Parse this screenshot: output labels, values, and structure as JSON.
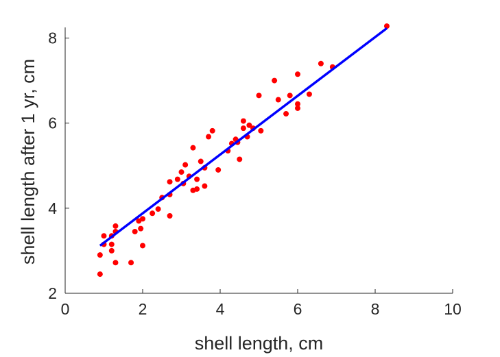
{
  "chart_data": {
    "type": "scatter",
    "title": "",
    "xlabel": "shell length, cm",
    "ylabel": "shell length after 1 yr, cm",
    "xlim": [
      0,
      10
    ],
    "ylim": [
      2,
      8.25
    ],
    "xticks": [
      "0",
      "2",
      "4",
      "6",
      "8",
      "10"
    ],
    "yticks": [
      "2",
      "4",
      "6",
      "8"
    ],
    "grid": false,
    "legend": "none",
    "colors": {
      "points": "#ff0000",
      "fit_line": "#0000ff",
      "axes": "#262626"
    },
    "points": [
      [
        0.9,
        2.45
      ],
      [
        0.9,
        2.9
      ],
      [
        1.0,
        3.15
      ],
      [
        1.0,
        3.35
      ],
      [
        1.2,
        3.35
      ],
      [
        1.2,
        3.15
      ],
      [
        1.2,
        3.0
      ],
      [
        1.3,
        3.45
      ],
      [
        1.3,
        3.58
      ],
      [
        1.3,
        2.72
      ],
      [
        1.7,
        2.72
      ],
      [
        1.8,
        3.45
      ],
      [
        1.9,
        3.7
      ],
      [
        1.95,
        3.52
      ],
      [
        2.0,
        3.75
      ],
      [
        2.0,
        3.12
      ],
      [
        2.25,
        3.88
      ],
      [
        2.4,
        3.98
      ],
      [
        2.5,
        4.25
      ],
      [
        2.7,
        4.32
      ],
      [
        2.7,
        4.62
      ],
      [
        2.7,
        3.82
      ],
      [
        2.9,
        4.68
      ],
      [
        3.0,
        4.85
      ],
      [
        3.05,
        4.58
      ],
      [
        3.1,
        5.02
      ],
      [
        3.2,
        4.75
      ],
      [
        3.3,
        4.42
      ],
      [
        3.3,
        5.42
      ],
      [
        3.4,
        4.45
      ],
      [
        3.4,
        4.68
      ],
      [
        3.5,
        5.1
      ],
      [
        3.6,
        4.52
      ],
      [
        3.6,
        4.95
      ],
      [
        3.7,
        5.68
      ],
      [
        3.8,
        5.82
      ],
      [
        3.95,
        4.9
      ],
      [
        4.2,
        5.35
      ],
      [
        4.3,
        5.52
      ],
      [
        4.4,
        5.62
      ],
      [
        4.45,
        5.55
      ],
      [
        4.5,
        5.15
      ],
      [
        4.6,
        6.05
      ],
      [
        4.6,
        5.88
      ],
      [
        4.7,
        5.68
      ],
      [
        4.75,
        5.95
      ],
      [
        4.85,
        5.88
      ],
      [
        5.0,
        6.65
      ],
      [
        5.05,
        5.82
      ],
      [
        5.4,
        7.0
      ],
      [
        5.5,
        6.55
      ],
      [
        5.7,
        6.22
      ],
      [
        5.8,
        6.65
      ],
      [
        6.0,
        7.15
      ],
      [
        6.0,
        6.45
      ],
      [
        6.0,
        6.35
      ],
      [
        6.3,
        6.68
      ],
      [
        6.6,
        7.4
      ],
      [
        6.9,
        7.32
      ],
      [
        8.3,
        8.28
      ]
    ],
    "fit_line": {
      "x": [
        0.9,
        8.3
      ],
      "y": [
        3.12,
        8.23
      ]
    }
  }
}
